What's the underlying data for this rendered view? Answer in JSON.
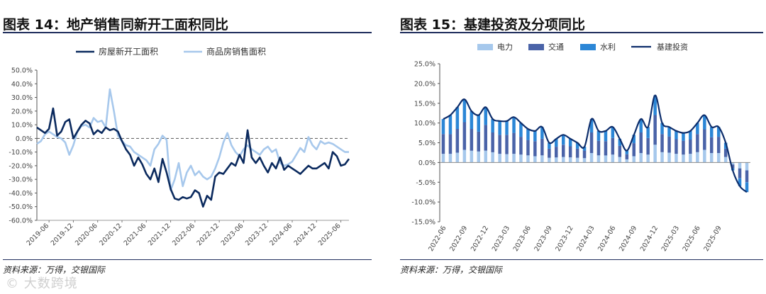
{
  "watermark": "© 大数跨境",
  "chart_data": [
    {
      "type": "line",
      "title": "图表 14：地产销售同新开工面积同比",
      "source": "资料来源：万得，交银国际",
      "ylim": [
        -60,
        50
      ],
      "y_ticks": [
        "50.0%",
        "40.0%",
        "30.0%",
        "20.0%",
        "10.0%",
        "0.0%",
        "-10.0%",
        "-20.0%",
        "-30.0%",
        "-40.0%",
        "-50.0%",
        "-60.0%"
      ],
      "x_ticks": [
        "2019-06",
        "2019-12",
        "2020-06",
        "2020-12",
        "2021-06",
        "2021-12",
        "2022-06",
        "2022-12",
        "2023-06",
        "2023-12",
        "2024-06",
        "2024-12",
        "2025-06"
      ],
      "legend_position": "top",
      "zero_line": "dashed",
      "x_start": "2019-03",
      "series": [
        {
          "name": "房屋新开工面积",
          "color": "#0b2a5e",
          "values": [
            8,
            6,
            4,
            7,
            22,
            2,
            5,
            12,
            14,
            0,
            5,
            10,
            13,
            11,
            3,
            6,
            4,
            8,
            6,
            7,
            5,
            -2,
            -8,
            -12,
            -20,
            -14,
            -19,
            -26,
            -30,
            -22,
            -32,
            -15,
            -25,
            -37,
            -44,
            -45,
            -43,
            -44,
            -43,
            -38,
            -40,
            -50,
            -42,
            -45,
            -28,
            -25,
            -26,
            -22,
            -18,
            -20,
            -12,
            -18,
            6,
            -14,
            -18,
            -14,
            -20,
            -25,
            -18,
            -22,
            -14,
            -23,
            -20,
            -22,
            -24,
            -26,
            -23,
            -20,
            -22,
            -22,
            -20,
            -18,
            -22,
            -10,
            -13,
            -20,
            -19,
            -15
          ]
        },
        {
          "name": "商品房销售面积",
          "color": "#a7c8ec",
          "values": [
            -4,
            -2,
            3,
            5,
            3,
            1,
            0,
            -3,
            -12,
            -5,
            5,
            9,
            10,
            8,
            15,
            12,
            13,
            8,
            36,
            20,
            2,
            -2,
            -5,
            -6,
            -10,
            -12,
            -14,
            -16,
            -20,
            -8,
            -4,
            2,
            -1,
            -38,
            -30,
            -18,
            -35,
            -25,
            -20,
            -27,
            -24,
            -28,
            -30,
            -28,
            -22,
            -14,
            -3,
            4,
            -5,
            -10,
            -13,
            -8,
            -5,
            -8,
            -10,
            -12,
            -8,
            -6,
            -10,
            -8,
            -18,
            -20,
            -19,
            -17,
            -12,
            -7,
            -10,
            1,
            -5,
            -8,
            -2,
            -4,
            -3,
            -4,
            -6,
            -8,
            -10,
            -10
          ]
        }
      ]
    },
    {
      "type": "bar",
      "title": "图表 15：基建投资及分项同比",
      "source": "资料来源：万得，交银国际",
      "ylim": [
        -15,
        25
      ],
      "y_ticks": [
        "25.0%",
        "20.0%",
        "15.0%",
        "10.0%",
        "5.0%",
        "0.0%",
        "-5.0%",
        "-10.0%",
        "-15.0%"
      ],
      "x_ticks": [
        "2022-06",
        "2022-09",
        "2022-12",
        "2023-03",
        "2023-06",
        "2023-09",
        "2023-12",
        "2024-03",
        "2024-06",
        "2024-09",
        "2024-12",
        "2025-03",
        "2025-06",
        "2025-09"
      ],
      "legend_position": "top",
      "stacked": true,
      "line_series": {
        "name": "基建投资",
        "color": "#0d2d6b",
        "values": [
          11,
          12,
          14,
          16,
          13,
          12,
          14,
          11,
          10.5,
          10.5,
          11.5,
          10,
          8.5,
          8,
          9,
          5,
          6,
          7,
          6,
          5,
          4,
          11,
          8,
          8,
          9,
          6,
          3,
          7,
          11,
          9,
          17,
          10,
          9,
          8,
          7.5,
          8,
          10,
          12,
          9,
          9,
          5,
          -2,
          -6,
          -7.5
        ]
      },
      "series": [
        {
          "name": "电力",
          "color": "#a6c8ec",
          "values": [
            2.2,
            2.2,
            2.5,
            3.2,
            3,
            2.8,
            3,
            2.6,
            2.2,
            2.1,
            2.2,
            2.0,
            1.8,
            1.6,
            1.8,
            1.2,
            1.3,
            1.4,
            1.3,
            1.2,
            1.1,
            2.4,
            1.8,
            1.8,
            2.0,
            1.4,
            0.8,
            1.6,
            2.4,
            2.0,
            4.5,
            2.6,
            2.5,
            2.2,
            2.0,
            2.2,
            2.6,
            3.2,
            2.4,
            2.4,
            1.4,
            -0.5,
            -1.5,
            -2.0
          ]
        },
        {
          "name": "交通",
          "color": "#4a63a8",
          "values": [
            5.0,
            5.0,
            6.0,
            7.0,
            5.5,
            5.0,
            6.5,
            5.0,
            4.8,
            4.9,
            5.3,
            4.5,
            3.9,
            3.8,
            4.2,
            2.3,
            2.7,
            3.1,
            2.8,
            2.3,
            1.9,
            5.2,
            3.7,
            3.6,
            4.2,
            2.8,
            1.3,
            3.3,
            5.2,
            4.2,
            7.5,
            4.6,
            4.1,
            3.7,
            3.5,
            3.6,
            4.6,
            5.2,
            4.0,
            4.1,
            2.1,
            -1.0,
            -2.5,
            -3.0
          ]
        },
        {
          "name": "水利",
          "color": "#2b86d6",
          "values": [
            3.8,
            4.8,
            5.5,
            5.8,
            4.5,
            4.2,
            4.5,
            3.4,
            3.5,
            3.5,
            4.0,
            3.5,
            2.8,
            2.6,
            3.0,
            1.5,
            2.0,
            2.5,
            1.9,
            1.5,
            1.0,
            3.4,
            2.5,
            2.6,
            2.8,
            1.8,
            0.9,
            2.1,
            3.4,
            2.8,
            5.0,
            2.8,
            2.4,
            2.1,
            2.0,
            2.2,
            2.8,
            3.6,
            2.6,
            2.5,
            1.5,
            -0.5,
            -2.0,
            -2.5
          ]
        }
      ]
    }
  ]
}
